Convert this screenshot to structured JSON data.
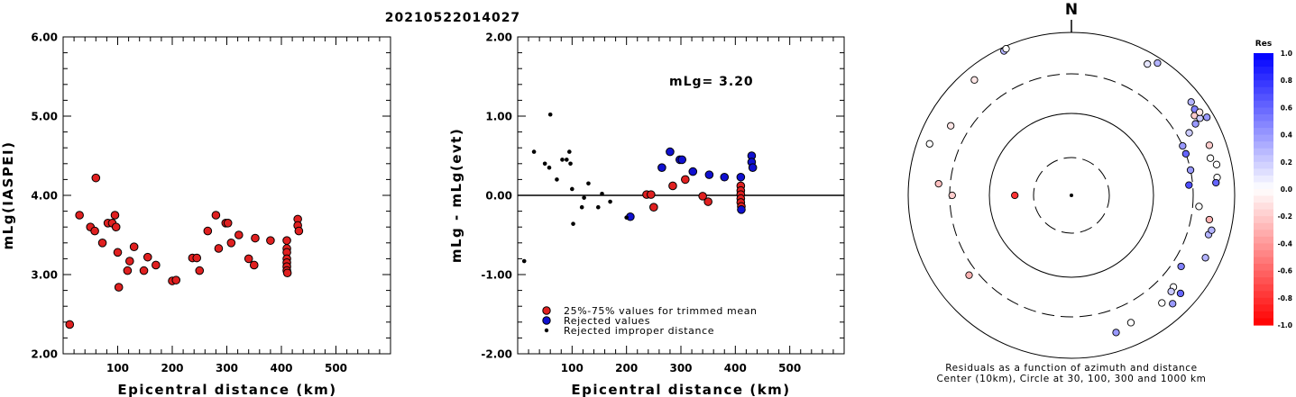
{
  "header": {
    "event_id": "20210522014027"
  },
  "chart_data": [
    {
      "type": "scatter",
      "xlabel": "Epicentral distance (km)",
      "ylabel": "mLg(IASPEI)",
      "xlim": [
        0,
        600
      ],
      "ylim": [
        2.0,
        6.0
      ],
      "x_ticks": [
        "100",
        "200",
        "300",
        "400",
        "500"
      ],
      "y_ticks": [
        "2.00",
        "3.00",
        "4.00",
        "5.00",
        "6.00"
      ],
      "grid": false,
      "series": [
        {
          "marker": "red-circle",
          "points": [
            [
              12,
              2.37
            ],
            [
              30,
              3.75
            ],
            [
              50,
              3.6
            ],
            [
              58,
              3.55
            ],
            [
              60,
              4.22
            ],
            [
              72,
              3.4
            ],
            [
              82,
              3.65
            ],
            [
              90,
              3.65
            ],
            [
              95,
              3.75
            ],
            [
              97,
              3.6
            ],
            [
              100,
              3.28
            ],
            [
              102,
              2.84
            ],
            [
              118,
              3.05
            ],
            [
              122,
              3.17
            ],
            [
              130,
              3.35
            ],
            [
              148,
              3.05
            ],
            [
              155,
              3.22
            ],
            [
              170,
              3.12
            ],
            [
              200,
              2.92
            ],
            [
              207,
              2.93
            ],
            [
              237,
              3.21
            ],
            [
              245,
              3.21
            ],
            [
              250,
              3.05
            ],
            [
              265,
              3.55
            ],
            [
              280,
              3.75
            ],
            [
              285,
              3.33
            ],
            [
              298,
              3.65
            ],
            [
              302,
              3.65
            ],
            [
              308,
              3.4
            ],
            [
              322,
              3.5
            ],
            [
              340,
              3.2
            ],
            [
              350,
              3.12
            ],
            [
              352,
              3.46
            ],
            [
              380,
              3.43
            ],
            [
              410,
              3.43
            ],
            [
              410,
              3.33
            ],
            [
              410,
              3.28
            ],
            [
              410,
              3.2
            ],
            [
              410,
              3.15
            ],
            [
              410,
              3.1
            ],
            [
              410,
              3.05
            ],
            [
              411,
              3.02
            ],
            [
              430,
              3.7
            ],
            [
              430,
              3.62
            ],
            [
              432,
              3.55
            ]
          ]
        }
      ]
    },
    {
      "type": "scatter",
      "xlabel": "Epicentral distance (km)",
      "ylabel": "mLg - mLg(evt)",
      "xlim": [
        0,
        600
      ],
      "ylim": [
        -2.0,
        2.0
      ],
      "x_ticks": [
        "100",
        "200",
        "300",
        "400",
        "500"
      ],
      "y_ticks": [
        "-2.00",
        "-1.00",
        "0.00",
        "1.00",
        "2.00"
      ],
      "grid": false,
      "annotation": "mLg= 3.20",
      "reference_line_y": 0,
      "series": [
        {
          "name": "25%-75% values for trimmed mean",
          "color": "#e02020",
          "points": [
            [
              237,
              0.01
            ],
            [
              245,
              0.01
            ],
            [
              250,
              -0.15
            ],
            [
              285,
              0.12
            ],
            [
              308,
              0.2
            ],
            [
              340,
              -0.01
            ],
            [
              350,
              -0.08
            ],
            [
              410,
              0.12
            ],
            [
              410,
              0.06
            ],
            [
              410,
              0.01
            ],
            [
              410,
              -0.04
            ],
            [
              410,
              -0.09
            ],
            [
              411,
              -0.14
            ]
          ]
        },
        {
          "name": "Rejected values",
          "color": "#1010d0",
          "points": [
            [
              207,
              -0.27
            ],
            [
              265,
              0.35
            ],
            [
              280,
              0.55
            ],
            [
              298,
              0.45
            ],
            [
              302,
              0.45
            ],
            [
              322,
              0.3
            ],
            [
              352,
              0.26
            ],
            [
              380,
              0.23
            ],
            [
              410,
              0.23
            ],
            [
              411,
              -0.18
            ],
            [
              430,
              0.5
            ],
            [
              430,
              0.42
            ],
            [
              432,
              0.35
            ]
          ]
        },
        {
          "name": "Rejected improper distance",
          "color": "#000000",
          "points": [
            [
              12,
              -0.83
            ],
            [
              30,
              0.55
            ],
            [
              50,
              0.4
            ],
            [
              58,
              0.35
            ],
            [
              60,
              1.02
            ],
            [
              72,
              0.2
            ],
            [
              82,
              0.45
            ],
            [
              90,
              0.45
            ],
            [
              95,
              0.55
            ],
            [
              97,
              0.4
            ],
            [
              100,
              0.08
            ],
            [
              102,
              -0.36
            ],
            [
              118,
              -0.15
            ],
            [
              122,
              -0.03
            ],
            [
              130,
              0.15
            ],
            [
              148,
              -0.15
            ],
            [
              155,
              0.02
            ],
            [
              170,
              -0.08
            ],
            [
              200,
              -0.28
            ]
          ]
        }
      ]
    },
    {
      "type": "scatter",
      "subtype": "polar",
      "north_label": "N",
      "caption_line1": "Residuals as a function of azimuth and distance",
      "caption_line2": "Center (10km), Circle at 30, 100, 300 and 1000 km",
      "rings_km": [
        30,
        100,
        300,
        1000
      ],
      "colorbar": {
        "title": "Res",
        "ticks": [
          "1.0",
          "0.8",
          "0.6",
          "0.4",
          "0.2",
          "0.0",
          "-0.2",
          "-0.4",
          "-0.6",
          "-0.8",
          "-1.0"
        ],
        "range": [
          -1.0,
          1.0
        ]
      },
      "stations": [
        {
          "az": 270,
          "dist_km": 50,
          "res": -0.8
        },
        {
          "az": 300,
          "dist_km": 500,
          "res": -0.1
        },
        {
          "az": 270,
          "dist_km": 280,
          "res": -0.2
        },
        {
          "az": 275,
          "dist_km": 420,
          "res": -0.25
        },
        {
          "az": 290,
          "dist_km": 700,
          "res": 0.0
        },
        {
          "az": 320,
          "dist_km": 700,
          "res": -0.1
        },
        {
          "az": 335,
          "dist_km": 900,
          "res": 0.3
        },
        {
          "az": 336,
          "dist_km": 930,
          "res": 0.0
        },
        {
          "az": 232,
          "dist_km": 380,
          "res": -0.3
        },
        {
          "az": 30,
          "dist_km": 720,
          "res": 0.1
        },
        {
          "az": 33,
          "dist_km": 860,
          "res": 0.3
        },
        {
          "az": 70,
          "dist_km": 300,
          "res": 0.6
        },
        {
          "az": 66,
          "dist_km": 300,
          "res": 0.4
        },
        {
          "az": 78,
          "dist_km": 300,
          "res": 0.4
        },
        {
          "az": 85,
          "dist_km": 270,
          "res": 0.7
        },
        {
          "az": 62,
          "dist_km": 420,
          "res": 0.2
        },
        {
          "az": 60,
          "dist_km": 560,
          "res": 0.4
        },
        {
          "az": 57,
          "dist_km": 620,
          "res": -0.2
        },
        {
          "az": 59,
          "dist_km": 680,
          "res": 0.2
        },
        {
          "az": 55,
          "dist_km": 690,
          "res": 0.5
        },
        {
          "az": 52,
          "dist_km": 720,
          "res": 0.3
        },
        {
          "az": 57,
          "dist_km": 740,
          "res": -0.1
        },
        {
          "az": 60,
          "dist_km": 820,
          "res": 0.4
        },
        {
          "az": 70,
          "dist_km": 620,
          "res": -0.2
        },
        {
          "az": 75,
          "dist_km": 570,
          "res": 0.0
        },
        {
          "az": 78,
          "dist_km": 650,
          "res": 0.0
        },
        {
          "az": 83,
          "dist_km": 620,
          "res": 0.0
        },
        {
          "az": 85,
          "dist_km": 590,
          "res": 0.6
        },
        {
          "az": 95,
          "dist_km": 360,
          "res": 0.0
        },
        {
          "az": 100,
          "dist_km": 510,
          "res": -0.3
        },
        {
          "az": 106,
          "dist_km": 550,
          "res": 0.3
        },
        {
          "az": 123,
          "dist_km": 390,
          "res": 0.5
        },
        {
          "az": 132,
          "dist_km": 470,
          "res": 0.0
        },
        {
          "az": 134,
          "dist_km": 490,
          "res": 0.2
        },
        {
          "az": 140,
          "dist_km": 520,
          "res": 0.0
        },
        {
          "az": 132,
          "dist_km": 620,
          "res": 0.6
        },
        {
          "az": 137,
          "dist_km": 650,
          "res": 0.4
        },
        {
          "az": 155,
          "dist_km": 520,
          "res": 0.0
        },
        {
          "az": 162,
          "dist_km": 580,
          "res": 0.4
        },
        {
          "az": 104,
          "dist_km": 580,
          "res": 0.3
        },
        {
          "az": 115,
          "dist_km": 640,
          "res": 0.3
        }
      ]
    }
  ]
}
